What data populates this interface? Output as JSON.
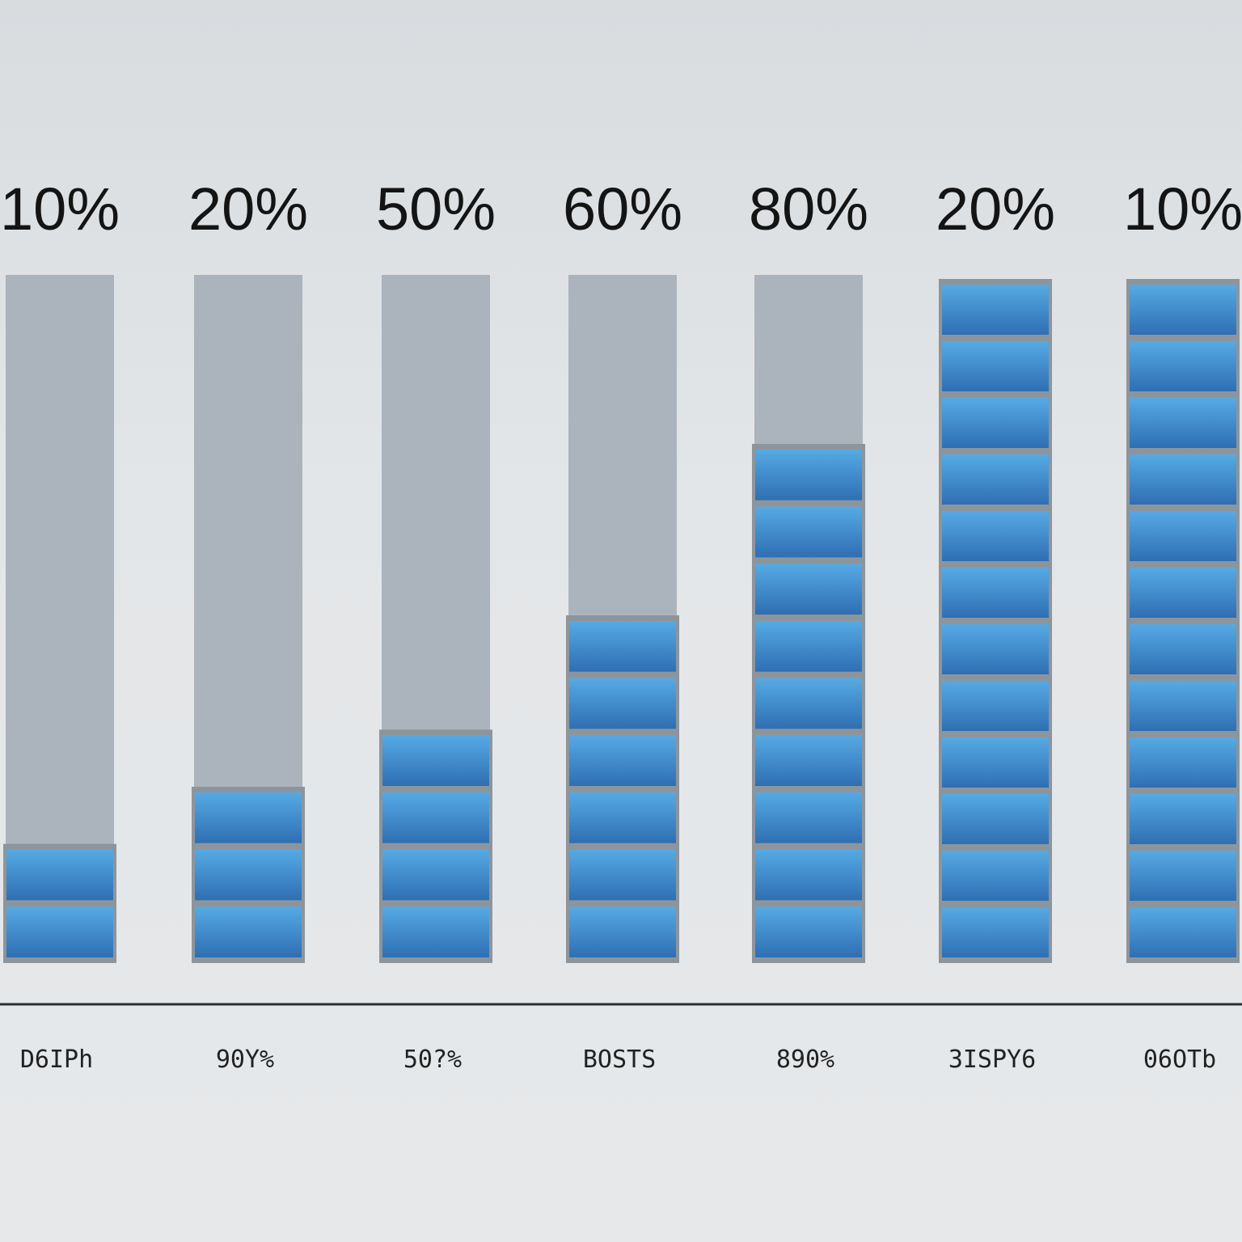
{
  "chart_data": {
    "type": "bar",
    "title": "",
    "xlabel": "",
    "ylabel": "",
    "categories": [
      "D6IPh",
      "90Y%",
      "50?%",
      "BOSTS",
      "890%",
      "3ISPY6",
      "06OTb"
    ],
    "top_labels": [
      "10%",
      "20%",
      "50%",
      "60%",
      "80%",
      "20%",
      "10%"
    ],
    "values": [
      2,
      3,
      4,
      6,
      9,
      12,
      12
    ],
    "segments_total": 12,
    "ylim": [
      0,
      12
    ],
    "grid": false,
    "legend": "none",
    "colors": {
      "track": "#abb4bc",
      "segment_top": "#56aae4",
      "segment_bottom": "#2f6fb3",
      "segment_border": "#8d959c",
      "baseline": "#2a2e31"
    }
  }
}
